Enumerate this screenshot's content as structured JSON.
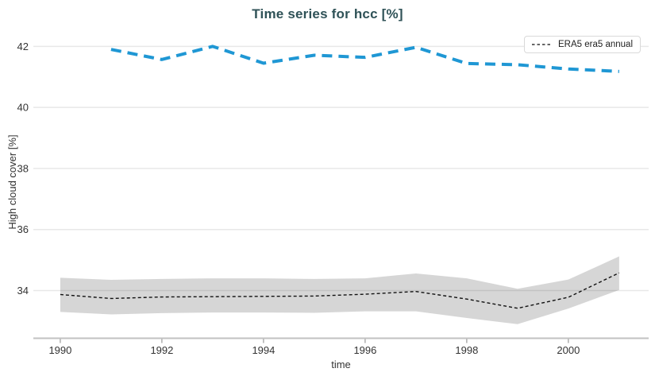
{
  "chart_data": {
    "type": "line",
    "title": "Time series for hcc [%]",
    "xlabel": "time",
    "ylabel": "High cloud cover [%]",
    "xlim": [
      1989.47,
      2001.58
    ],
    "ylim": [
      32.45,
      42.4
    ],
    "x_ticks": [
      1990,
      1992,
      1994,
      1996,
      1998,
      2000
    ],
    "y_ticks": [
      34,
      36,
      38,
      40,
      42
    ],
    "grid": "horizontal-only",
    "legend_position": "top-right",
    "series": [
      {
        "name": "",
        "color": "#1f97d4",
        "dash": [
          13,
          8
        ],
        "width": 4,
        "x": [
          1991,
          1992,
          1993,
          1994,
          1995,
          1996,
          1997,
          1998,
          1999,
          2000,
          2001
        ],
        "y": [
          41.9,
          41.57,
          42.0,
          41.45,
          41.71,
          41.64,
          41.97,
          41.44,
          41.4,
          41.26,
          41.18
        ]
      },
      {
        "name": "ERA5 era5 annual",
        "color": "#111111",
        "dash": [
          4,
          3
        ],
        "width": 1.4,
        "x": [
          1990,
          1991,
          1992,
          1993,
          1994,
          1995,
          1996,
          1997,
          1998,
          1999,
          2000,
          2001
        ],
        "y": [
          33.87,
          33.74,
          33.79,
          33.8,
          33.81,
          33.82,
          33.88,
          33.97,
          33.72,
          33.42,
          33.78,
          34.58
        ],
        "band_upper": [
          34.42,
          34.35,
          34.38,
          34.4,
          34.4,
          34.38,
          34.4,
          34.56,
          34.4,
          34.06,
          34.36,
          35.12
        ],
        "band_lower": [
          33.3,
          33.22,
          33.26,
          33.28,
          33.28,
          33.27,
          33.32,
          33.32,
          33.1,
          32.9,
          33.41,
          34.02
        ],
        "band_color": "rgba(0,0,0,0.16)"
      }
    ]
  },
  "legend": {
    "label": "ERA5 era5 annual"
  },
  "colors": {
    "title": "#2f5257",
    "gridline": "#e8e8e8",
    "axis_line": "#c2c2c2",
    "tick_mark": "#999999",
    "tick_label": "#333333",
    "blue_series": "#1f97d4",
    "black_series": "#111111"
  }
}
